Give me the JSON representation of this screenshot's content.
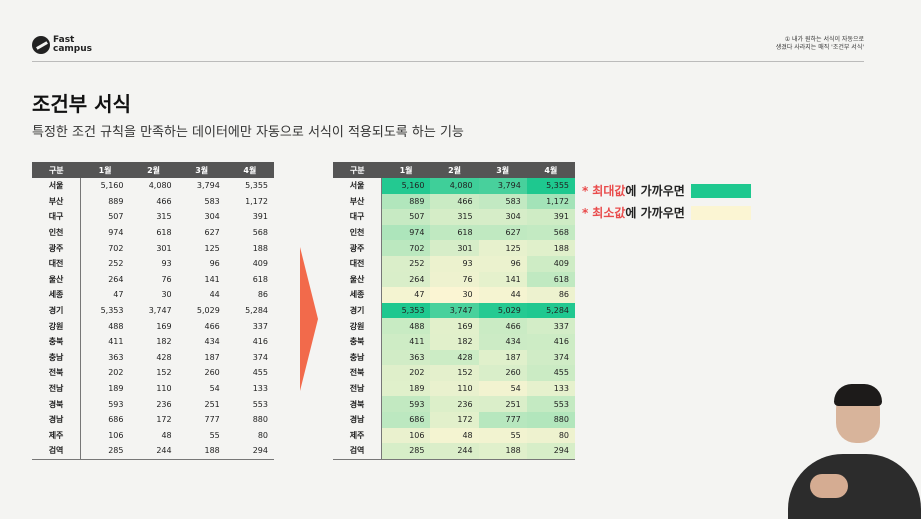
{
  "header": {
    "logo_line1": "Fast",
    "logo_line2": "campus",
    "note_line1": "① 내가 원하는 서식이 자동으로",
    "note_line2": "생겼다 사라지는 매직 '조건부 서식'"
  },
  "title": "조건부 서식",
  "subtitle": "특정한 조건 규칙을 만족하는 데이터에만 자동으로 서식이 적용되도록 하는 기능",
  "table": {
    "columns": [
      "구분",
      "1월",
      "2월",
      "3월",
      "4월"
    ],
    "rows": [
      [
        "서울",
        "5,160",
        "4,080",
        "3,794",
        "5,355"
      ],
      [
        "부산",
        "889",
        "466",
        "583",
        "1,172"
      ],
      [
        "대구",
        "507",
        "315",
        "304",
        "391"
      ],
      [
        "인천",
        "974",
        "618",
        "627",
        "568"
      ],
      [
        "광주",
        "702",
        "301",
        "125",
        "188"
      ],
      [
        "대전",
        "252",
        "93",
        "96",
        "409"
      ],
      [
        "울산",
        "264",
        "76",
        "141",
        "618"
      ],
      [
        "세종",
        "47",
        "30",
        "44",
        "86"
      ],
      [
        "경기",
        "5,353",
        "3,747",
        "5,029",
        "5,284"
      ],
      [
        "강원",
        "488",
        "169",
        "466",
        "337"
      ],
      [
        "충북",
        "411",
        "182",
        "434",
        "416"
      ],
      [
        "충남",
        "363",
        "428",
        "187",
        "374"
      ],
      [
        "전북",
        "202",
        "152",
        "260",
        "455"
      ],
      [
        "전남",
        "189",
        "110",
        "54",
        "133"
      ],
      [
        "경북",
        "593",
        "236",
        "251",
        "553"
      ],
      [
        "경남",
        "686",
        "172",
        "777",
        "880"
      ],
      [
        "제주",
        "106",
        "48",
        "55",
        "80"
      ],
      [
        "검역",
        "285",
        "244",
        "188",
        "294"
      ]
    ]
  },
  "legend": {
    "max_star": "*",
    "max_em": "최대값",
    "max_rest": "에 가까우면",
    "min_star": "*",
    "min_em": "최소값",
    "min_rest": "에 가까우면"
  },
  "colors": {
    "max": "#1ec88f",
    "min": "#fbf5d3",
    "header_bg": "#555555",
    "arrow": "#f26a4b"
  },
  "icons": [
    "fastcampus-logo-icon",
    "right-arrow-icon"
  ]
}
